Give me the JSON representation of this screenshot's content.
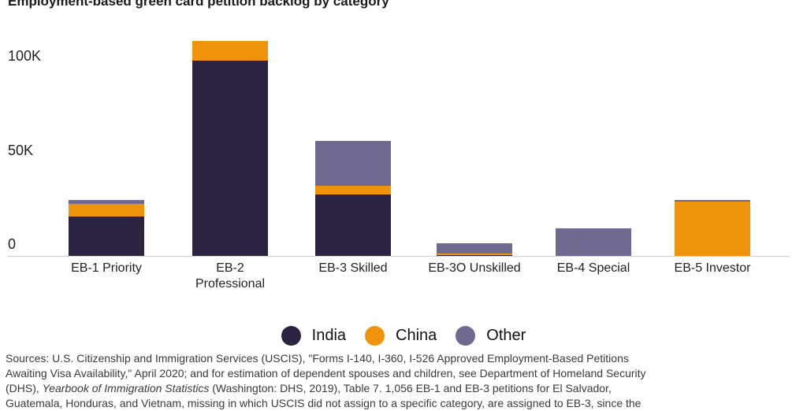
{
  "chart_data": {
    "type": "bar",
    "variant": "stacked",
    "title": "Employment-based green card petition backlog by category",
    "categories": [
      "EB-1 Priority",
      "EB-2 Professional",
      "EB-3 Skilled",
      "EB-3O Unskilled",
      "EB-4 Special",
      "EB-5 Investor"
    ],
    "category_label_lines": [
      [
        "EB-1 Priority"
      ],
      [
        "EB-2",
        "Professional"
      ],
      [
        "EB-3 Skilled"
      ],
      [
        "EB-3O Unskilled"
      ],
      [
        "EB-4 Special"
      ],
      [
        "EB-5 Investor"
      ]
    ],
    "series": [
      {
        "name": "India",
        "color": "#2a2342",
        "values": [
          21000,
          104000,
          32600,
          400,
          0,
          0
        ]
      },
      {
        "name": "China",
        "color": "#ef940a",
        "values": [
          6500,
          10400,
          4900,
          1000,
          0,
          28900
        ]
      },
      {
        "name": "Other",
        "color": "#706a90",
        "values": [
          2400,
          0,
          23800,
          5400,
          14800,
          1000
        ]
      }
    ],
    "stack_order_bottom_to_top": [
      "India",
      "China",
      "Other"
    ],
    "y_ticks": [
      "100K",
      "50K",
      "0"
    ],
    "y_tick_values": [
      100000,
      50000,
      0
    ],
    "ylim": [
      0,
      117000
    ],
    "grid": false,
    "legend_position": "bottom",
    "axis_color": "#cfcfcf"
  },
  "sources": {
    "line1": "Sources: U.S. Citizenship and Immigration Services (USCIS), \"Forms I-140, I-360, I-526 Approved Employment-Based Petitions",
    "line2": "Awaiting Visa Availability,\" April 2020; and for estimation of dependent spouses and children, see Department of Homeland Security",
    "line3_prefix": "(DHS), ",
    "line3_italic": "Yearbook of Immigration Statistics",
    "line3_suffix": " (Washington: DHS, 2019), Table 7. 1,056 EB-1 and EB-3 petitions for El Salvador,",
    "line4": "Guatemala, Honduras, and Vietnam, missing in which USCIS did not assign to a specific category, are assigned to EB-3, since the"
  }
}
